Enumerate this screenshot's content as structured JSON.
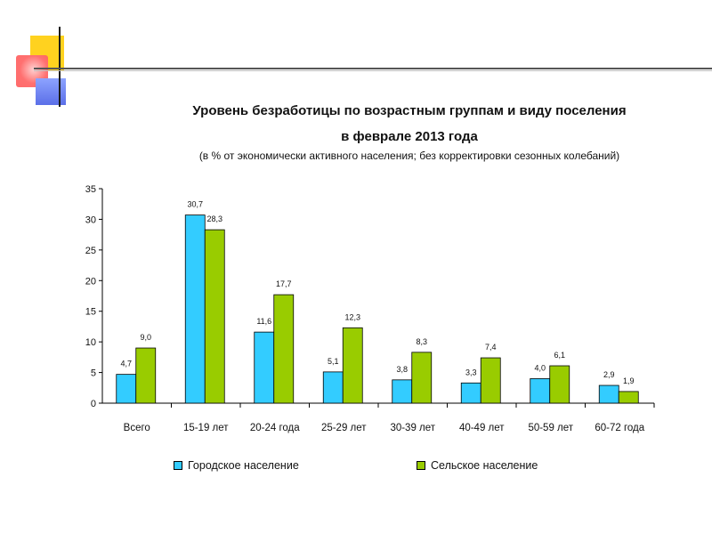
{
  "chart_data": {
    "type": "bar",
    "title": "Уровень безработицы по возрастным группам и виду поселения",
    "title_line2": "в феврале 2013 года",
    "subtitle": "(в  % от экономически активного населения; без корректировки сезонных колебаний)",
    "categories": [
      "Всего",
      "15-19 лет",
      "20-24 года",
      "25-29 лет",
      "30-39 лет",
      "40-49 лет",
      "50-59 лет",
      "60-72 года"
    ],
    "series": [
      {
        "name": "Городское население",
        "color": "#33ccff",
        "values": [
          4.7,
          30.7,
          11.6,
          5.1,
          3.8,
          3.3,
          4.0,
          2.9
        ],
        "labels": [
          "4,7",
          "30,7",
          "11,6",
          "5,1",
          "3,8",
          "3,3",
          "4,0",
          "2,9"
        ]
      },
      {
        "name": "Сельское население",
        "color": "#99cc00",
        "values": [
          9.0,
          28.3,
          17.7,
          12.3,
          8.3,
          7.4,
          6.1,
          1.9
        ],
        "labels": [
          "9,0",
          "28,3",
          "17,7",
          "12,3",
          "8,3",
          "7,4",
          "6,1",
          "1,9"
        ]
      }
    ],
    "ylim": [
      0,
      35
    ],
    "yticks": [
      0,
      5,
      10,
      15,
      20,
      25,
      30,
      35
    ],
    "grid": false,
    "legend_position": "bottom"
  }
}
